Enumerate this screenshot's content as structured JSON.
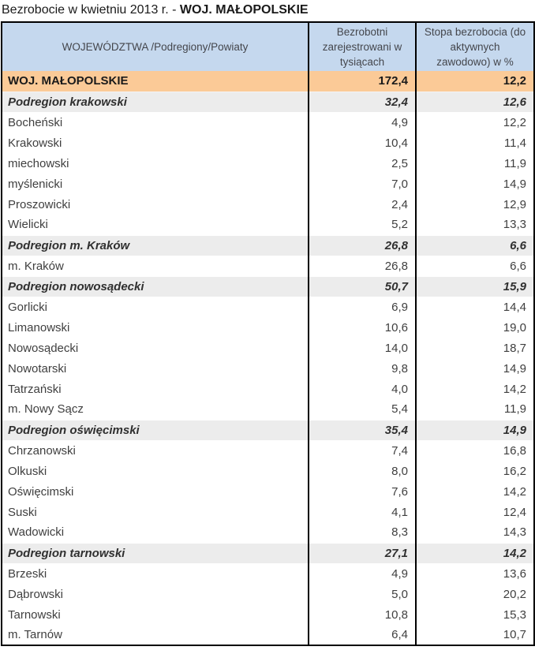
{
  "title": {
    "prefix": "Bezrobocie w kwietniu 2013 r. - ",
    "region": "WOJ. MAŁOPOLSKIE"
  },
  "colors": {
    "header_bg": "#c5d8ee",
    "voivodeship_row_bg": "#fbca97",
    "subregion_row_bg": "#ececec",
    "table_border": "#000000",
    "text": "#3f3f3f"
  },
  "table": {
    "columns": [
      "WOJEWÓDZTWA /Podregiony/Powiaty",
      "Bezrobotni zarejestrowani w tysiącach",
      "Stopa bezrobocia (do aktywnych zawodowo) w %"
    ],
    "rows": [
      {
        "name": "WOJ. MAŁOPOLSKIE",
        "unemployed": "172,4",
        "rate": "12,2",
        "level": "voivodeship"
      },
      {
        "name": "Podregion krakowski",
        "unemployed": "32,4",
        "rate": "12,6",
        "level": "subregion"
      },
      {
        "name": "Bocheński",
        "unemployed": "4,9",
        "rate": "12,2",
        "level": "powiat"
      },
      {
        "name": "Krakowski",
        "unemployed": "10,4",
        "rate": "11,4",
        "level": "powiat"
      },
      {
        "name": "miechowski",
        "unemployed": "2,5",
        "rate": "11,9",
        "level": "powiat"
      },
      {
        "name": "myślenicki",
        "unemployed": "7,0",
        "rate": "14,9",
        "level": "powiat"
      },
      {
        "name": "Proszowicki",
        "unemployed": "2,4",
        "rate": "12,9",
        "level": "powiat"
      },
      {
        "name": "Wielicki",
        "unemployed": "5,2",
        "rate": "13,3",
        "level": "powiat"
      },
      {
        "name": "Podregion m. Kraków",
        "unemployed": "26,8",
        "rate": "6,6",
        "level": "subregion"
      },
      {
        "name": "m. Kraków",
        "unemployed": "26,8",
        "rate": "6,6",
        "level": "powiat"
      },
      {
        "name": "Podregion nowosądecki",
        "unemployed": "50,7",
        "rate": "15,9",
        "level": "subregion"
      },
      {
        "name": "Gorlicki",
        "unemployed": "6,9",
        "rate": "14,4",
        "level": "powiat"
      },
      {
        "name": "Limanowski",
        "unemployed": "10,6",
        "rate": "19,0",
        "level": "powiat"
      },
      {
        "name": "Nowosądecki",
        "unemployed": "14,0",
        "rate": "18,7",
        "level": "powiat"
      },
      {
        "name": "Nowotarski",
        "unemployed": "9,8",
        "rate": "14,9",
        "level": "powiat"
      },
      {
        "name": "Tatrzański",
        "unemployed": "4,0",
        "rate": "14,2",
        "level": "powiat"
      },
      {
        "name": "m. Nowy Sącz",
        "unemployed": "5,4",
        "rate": "11,9",
        "level": "powiat"
      },
      {
        "name": "Podregion oświęcimski",
        "unemployed": "35,4",
        "rate": "14,9",
        "level": "subregion"
      },
      {
        "name": "Chrzanowski",
        "unemployed": "7,4",
        "rate": "16,8",
        "level": "powiat"
      },
      {
        "name": "Olkuski",
        "unemployed": "8,0",
        "rate": "16,2",
        "level": "powiat"
      },
      {
        "name": "Oświęcimski",
        "unemployed": "7,6",
        "rate": "14,2",
        "level": "powiat"
      },
      {
        "name": "Suski",
        "unemployed": "4,1",
        "rate": "12,4",
        "level": "powiat"
      },
      {
        "name": "Wadowicki",
        "unemployed": "8,3",
        "rate": "14,3",
        "level": "powiat"
      },
      {
        "name": "Podregion tarnowski",
        "unemployed": "27,1",
        "rate": "14,2",
        "level": "subregion"
      },
      {
        "name": "Brzeski",
        "unemployed": "4,9",
        "rate": "13,6",
        "level": "powiat"
      },
      {
        "name": "Dąbrowski",
        "unemployed": "5,0",
        "rate": "20,2",
        "level": "powiat"
      },
      {
        "name": "Tarnowski",
        "unemployed": "10,8",
        "rate": "15,3",
        "level": "powiat"
      },
      {
        "name": "m. Tarnów",
        "unemployed": "6,4",
        "rate": "10,7",
        "level": "powiat"
      }
    ]
  }
}
